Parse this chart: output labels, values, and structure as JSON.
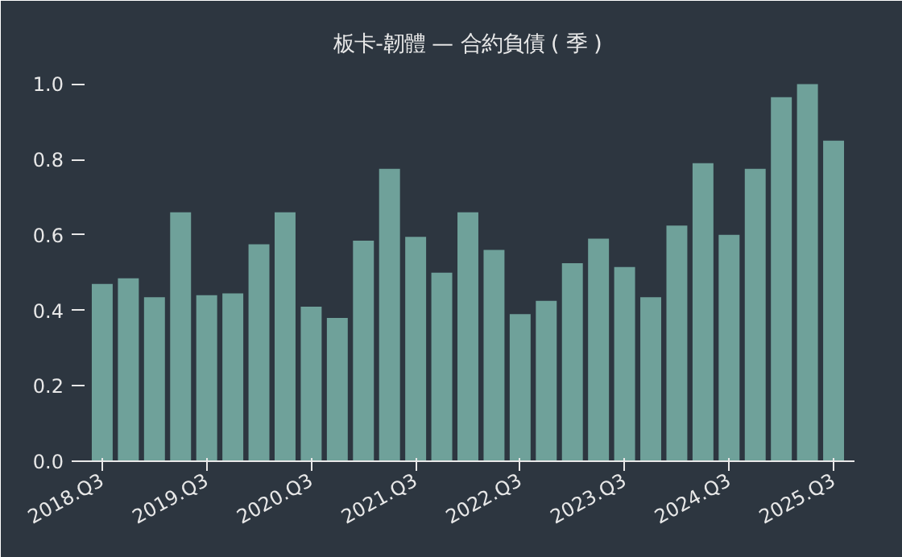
{
  "chart_data": {
    "type": "bar",
    "title": "板卡-韌體 — 合約負債 ( 季 )",
    "categories": [
      "2018.Q3",
      null,
      null,
      null,
      "2019.Q3",
      null,
      null,
      null,
      "2020.Q3",
      null,
      null,
      null,
      "2021.Q3",
      null,
      null,
      null,
      "2022.Q3",
      null,
      null,
      null,
      "2023.Q3",
      null,
      null,
      null,
      "2024.Q3",
      null,
      null,
      null,
      "2025.Q3"
    ],
    "values": [
      0.47,
      0.485,
      0.435,
      0.66,
      0.44,
      0.445,
      0.575,
      0.66,
      0.41,
      0.38,
      0.585,
      0.775,
      0.595,
      0.5,
      0.66,
      0.56,
      0.39,
      0.425,
      0.525,
      0.59,
      0.515,
      0.435,
      0.625,
      0.79,
      0.6,
      0.775,
      0.965,
      1.0,
      0.85
    ],
    "color": "#6fa19a",
    "ylim": [
      0,
      1.05
    ],
    "yticks": [
      {
        "value": 0,
        "label": "0.0"
      },
      {
        "value": 0.2,
        "label": "0.2"
      },
      {
        "value": 0.4,
        "label": "0.4"
      },
      {
        "value": 0.6,
        "label": "0.6"
      },
      {
        "value": 0.8,
        "label": "0.8"
      },
      {
        "value": 1.0,
        "label": "1.0"
      }
    ],
    "grid": false
  }
}
